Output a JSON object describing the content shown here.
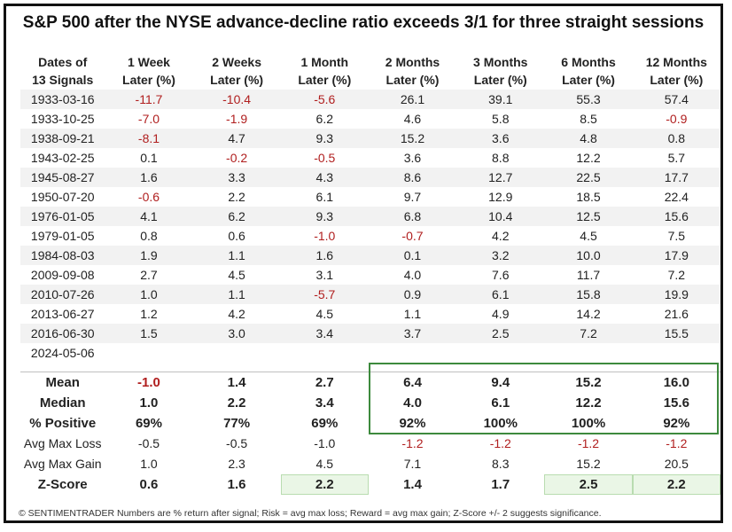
{
  "title": "S&P 500 after the NYSE advance-decline ratio exceeds 3/1 for three straight sessions",
  "headers": [
    [
      "Dates of",
      "13 Signals"
    ],
    [
      "1 Week",
      "Later (%)"
    ],
    [
      "2 Weeks",
      "Later (%)"
    ],
    [
      "1 Month",
      "Later (%)"
    ],
    [
      "2 Months",
      "Later (%)"
    ],
    [
      "3 Months",
      "Later (%)"
    ],
    [
      "6 Months",
      "Later (%)"
    ],
    [
      "12 Months",
      "Later (%)"
    ]
  ],
  "rows": [
    [
      "1933-03-16",
      "-11.7",
      "-10.4",
      "-5.6",
      "26.1",
      "39.1",
      "55.3",
      "57.4"
    ],
    [
      "1933-10-25",
      "-7.0",
      "-1.9",
      "6.2",
      "4.6",
      "5.8",
      "8.5",
      "-0.9"
    ],
    [
      "1938-09-21",
      "-8.1",
      "4.7",
      "9.3",
      "15.2",
      "3.6",
      "4.8",
      "0.8"
    ],
    [
      "1943-02-25",
      "0.1",
      "-0.2",
      "-0.5",
      "3.6",
      "8.8",
      "12.2",
      "5.7"
    ],
    [
      "1945-08-27",
      "1.6",
      "3.3",
      "4.3",
      "8.6",
      "12.7",
      "22.5",
      "17.7"
    ],
    [
      "1950-07-20",
      "-0.6",
      "2.2",
      "6.1",
      "9.7",
      "12.9",
      "18.5",
      "22.4"
    ],
    [
      "1976-01-05",
      "4.1",
      "6.2",
      "9.3",
      "6.8",
      "10.4",
      "12.5",
      "15.6"
    ],
    [
      "1979-01-05",
      "0.8",
      "0.6",
      "-1.0",
      "-0.7",
      "4.2",
      "4.5",
      "7.5"
    ],
    [
      "1984-08-03",
      "1.9",
      "1.1",
      "1.6",
      "0.1",
      "3.2",
      "10.0",
      "17.9"
    ],
    [
      "2009-09-08",
      "2.7",
      "4.5",
      "3.1",
      "4.0",
      "7.6",
      "11.7",
      "7.2"
    ],
    [
      "2010-07-26",
      "1.0",
      "1.1",
      "-5.7",
      "0.9",
      "6.1",
      "15.8",
      "19.9"
    ],
    [
      "2013-06-27",
      "1.2",
      "4.2",
      "4.5",
      "1.1",
      "4.9",
      "14.2",
      "21.6"
    ],
    [
      "2016-06-30",
      "1.5",
      "3.0",
      "3.4",
      "3.7",
      "2.5",
      "7.2",
      "15.5"
    ],
    [
      "2024-05-06",
      "",
      "",
      "",
      "",
      "",
      "",
      ""
    ]
  ],
  "stats": [
    {
      "label": "Mean",
      "style": "bold",
      "values": [
        "-1.0",
        "1.4",
        "2.7",
        "6.4",
        "9.4",
        "15.2",
        "16.0"
      ]
    },
    {
      "label": "Median",
      "style": "bold",
      "values": [
        "1.0",
        "2.2",
        "3.4",
        "4.0",
        "6.1",
        "12.2",
        "15.6"
      ]
    },
    {
      "label": "% Positive",
      "style": "bold",
      "values": [
        "69%",
        "77%",
        "69%",
        "92%",
        "100%",
        "100%",
        "92%"
      ]
    },
    {
      "label": "Avg Max Loss",
      "style": "lite",
      "values": [
        "-0.5",
        "-0.5",
        "-1.0",
        "-1.2",
        "-1.2",
        "-1.2",
        "-1.2"
      ]
    },
    {
      "label": "Avg Max Gain",
      "style": "lite",
      "values": [
        "1.0",
        "2.3",
        "4.5",
        "7.1",
        "8.3",
        "15.2",
        "20.5"
      ]
    },
    {
      "label": "Z-Score",
      "style": "z",
      "values": [
        "0.6",
        "1.6",
        "2.2",
        "1.4",
        "1.7",
        "2.5",
        "2.2"
      ],
      "highlight": [
        2,
        5,
        6
      ]
    }
  ],
  "footer": "© SENTIMENTRADER  Numbers are % return after signal; Risk = avg max loss; Reward = avg max gain; Z-Score +/- 2 suggests significance.",
  "colors": {
    "negative": "#b01e1e",
    "box": "#3d8a3d",
    "zhighlight": "#eaf6e6",
    "stripe": "#f2f2f2"
  }
}
